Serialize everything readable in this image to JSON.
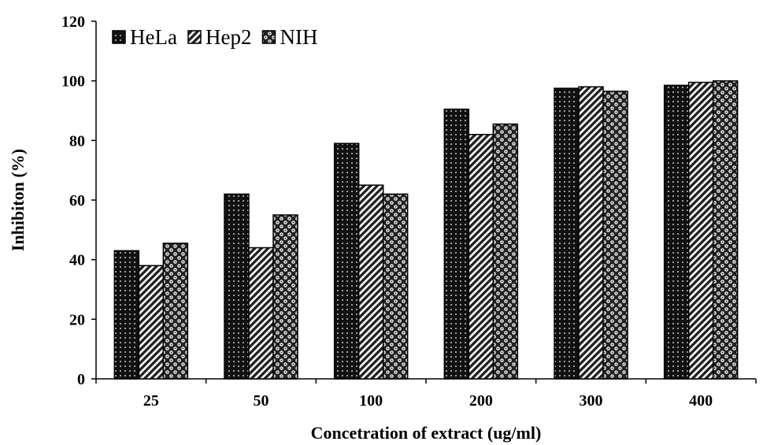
{
  "chart_data": {
    "type": "bar",
    "title": "",
    "xlabel": "Concetration of extract (ug/ml)",
    "ylabel": "Inhibiton (%)",
    "categories": [
      "25",
      "50",
      "100",
      "200",
      "300",
      "400"
    ],
    "ylim": [
      0,
      120
    ],
    "yticks": [
      0,
      20,
      40,
      60,
      80,
      100,
      120
    ],
    "grid": false,
    "legend_position": "top-left",
    "series": [
      {
        "name": "HeLa",
        "pattern": "dots",
        "values": [
          43,
          62,
          79,
          90.5,
          97.5,
          98.5
        ]
      },
      {
        "name": "Hep2",
        "pattern": "diagonal-stripes",
        "values": [
          38,
          44,
          65,
          82,
          98,
          99.5
        ]
      },
      {
        "name": "NIH",
        "pattern": "checker-dots",
        "values": [
          45.5,
          55,
          62,
          85.5,
          96.5,
          100
        ]
      }
    ]
  }
}
